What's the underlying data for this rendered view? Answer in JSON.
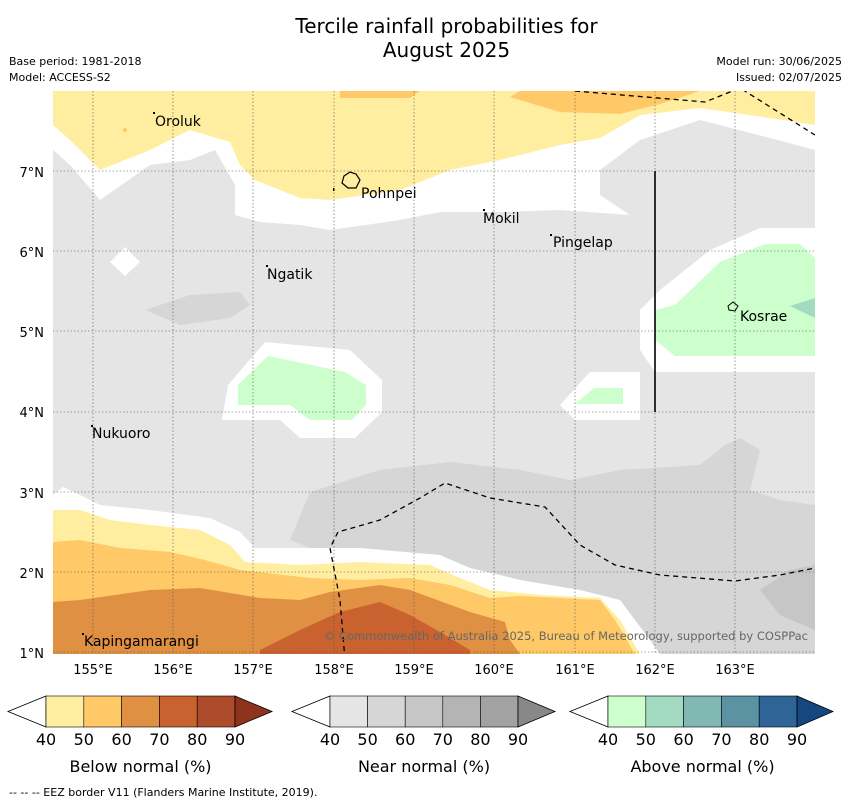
{
  "title": "Tercile rainfall probabilities for\nAugust 2025",
  "meta": {
    "base_period": "Base period: 1981-2018",
    "model": "Model: ACCESS-S2",
    "model_run": "Model run: 30/06/2025",
    "issued": "Issued: 02/07/2025"
  },
  "map": {
    "lat_ticks": [
      "1°N",
      "2°N",
      "3°N",
      "4°N",
      "5°N",
      "6°N",
      "7°N"
    ],
    "lon_ticks": [
      "155°E",
      "156°E",
      "157°E",
      "158°E",
      "159°E",
      "160°E",
      "161°E",
      "162°E",
      "163°E"
    ],
    "places": [
      "Oroluk",
      "Pohnpei",
      "Mokil",
      "Pingelap",
      "Ngatik",
      "Kosrae",
      "Nukuoro",
      "Kapingamarangi"
    ],
    "copyright": "© Commonwealth of Australia 2025, Bureau of Meteorology, supported by COSPPac"
  },
  "colorbars": [
    {
      "title": "Below normal (%)",
      "ticks": [
        "40",
        "50",
        "60",
        "70",
        "80",
        "90"
      ],
      "colors": [
        "#ffffff",
        "#ffeda0",
        "#fec966",
        "#df9042",
        "#c9622f",
        "#ae4b2a",
        "#8e341e"
      ]
    },
    {
      "title": "Near normal (%)",
      "ticks": [
        "40",
        "50",
        "60",
        "70",
        "80",
        "90"
      ],
      "colors": [
        "#ffffff",
        "#e5e5e5",
        "#d6d6d6",
        "#c6c6c6",
        "#b4b4b4",
        "#a2a2a2",
        "#888888"
      ]
    },
    {
      "title": "Above normal (%)",
      "ticks": [
        "40",
        "50",
        "60",
        "70",
        "80",
        "90"
      ],
      "colors": [
        "#ffffff",
        "#ccffcc",
        "#a2dbc1",
        "#82b8b2",
        "#5b93a2",
        "#2f6496",
        "#17477f"
      ]
    }
  ],
  "footnote": "-- -- -- EEZ border V11 (Flanders Marine Institute, 2019)."
}
